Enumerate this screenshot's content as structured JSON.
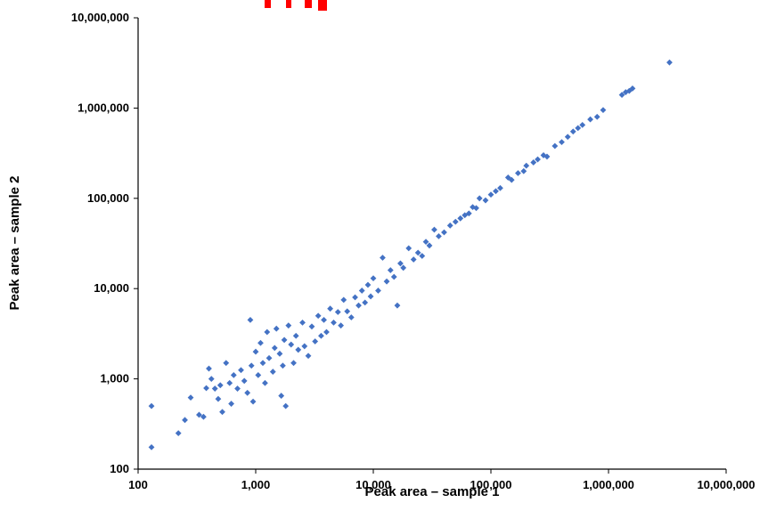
{
  "chart_data": {
    "type": "scatter",
    "title": "",
    "xlabel": "Peak area – sample 1",
    "ylabel": "Peak area – sample 2",
    "xscale": "log",
    "yscale": "log",
    "xlim": [
      100,
      10000000
    ],
    "ylim": [
      100,
      10000000
    ],
    "x_ticks": [
      "100",
      "1,000",
      "10,000",
      "100,000",
      "1,000,000",
      "10,000,000"
    ],
    "y_ticks": [
      "100",
      "1,000",
      "10,000",
      "100,000",
      "1,000,000",
      "10,000,000"
    ],
    "grid": false,
    "legend": "none",
    "marker_color": "#4472C4",
    "marker": "diamond",
    "title_fragment_color": "#FF0000",
    "series": [
      {
        "values": [
          [
            130,
            500
          ],
          [
            130,
            175
          ],
          [
            220,
            250
          ],
          [
            250,
            350
          ],
          [
            280,
            620
          ],
          [
            330,
            400
          ],
          [
            360,
            380
          ],
          [
            380,
            790
          ],
          [
            400,
            1300
          ],
          [
            420,
            1000
          ],
          [
            450,
            780
          ],
          [
            480,
            600
          ],
          [
            500,
            850
          ],
          [
            520,
            430
          ],
          [
            560,
            1500
          ],
          [
            600,
            900
          ],
          [
            620,
            530
          ],
          [
            650,
            1100
          ],
          [
            700,
            780
          ],
          [
            750,
            1250
          ],
          [
            800,
            950
          ],
          [
            850,
            700
          ],
          [
            900,
            4500
          ],
          [
            920,
            1400
          ],
          [
            950,
            560
          ],
          [
            1000,
            2000
          ],
          [
            1050,
            1100
          ],
          [
            1100,
            2500
          ],
          [
            1150,
            1500
          ],
          [
            1200,
            900
          ],
          [
            1250,
            3300
          ],
          [
            1300,
            1700
          ],
          [
            1400,
            1200
          ],
          [
            1450,
            2200
          ],
          [
            1500,
            3600
          ],
          [
            1600,
            1900
          ],
          [
            1650,
            650
          ],
          [
            1700,
            1400
          ],
          [
            1750,
            2700
          ],
          [
            1800,
            500
          ],
          [
            1900,
            3900
          ],
          [
            2000,
            2400
          ],
          [
            2100,
            1500
          ],
          [
            2200,
            3000
          ],
          [
            2300,
            2100
          ],
          [
            2500,
            4200
          ],
          [
            2600,
            2300
          ],
          [
            2800,
            1800
          ],
          [
            3000,
            3800
          ],
          [
            3200,
            2600
          ],
          [
            3400,
            5000
          ],
          [
            3600,
            3000
          ],
          [
            3800,
            4500
          ],
          [
            4000,
            3300
          ],
          [
            4300,
            6000
          ],
          [
            4600,
            4200
          ],
          [
            5000,
            5500
          ],
          [
            5300,
            3900
          ],
          [
            5600,
            7500
          ],
          [
            6000,
            5600
          ],
          [
            6500,
            4800
          ],
          [
            7000,
            8000
          ],
          [
            7500,
            6500
          ],
          [
            8000,
            9500
          ],
          [
            8500,
            7000
          ],
          [
            9000,
            11000
          ],
          [
            9500,
            8200
          ],
          [
            10000,
            13000
          ],
          [
            11000,
            9500
          ],
          [
            12000,
            22000
          ],
          [
            13000,
            12000
          ],
          [
            14000,
            16000
          ],
          [
            15000,
            13500
          ],
          [
            16000,
            6500
          ],
          [
            17000,
            19000
          ],
          [
            18000,
            17000
          ],
          [
            20000,
            28000
          ],
          [
            22000,
            21000
          ],
          [
            24000,
            25000
          ],
          [
            26000,
            23000
          ],
          [
            28000,
            33000
          ],
          [
            30000,
            30000
          ],
          [
            33000,
            45000
          ],
          [
            36000,
            38000
          ],
          [
            40000,
            42000
          ],
          [
            45000,
            50000
          ],
          [
            50000,
            55000
          ],
          [
            55000,
            60000
          ],
          [
            60000,
            65000
          ],
          [
            65000,
            68000
          ],
          [
            70000,
            80000
          ],
          [
            75000,
            78000
          ],
          [
            80000,
            100000
          ],
          [
            90000,
            95000
          ],
          [
            100000,
            110000
          ],
          [
            110000,
            120000
          ],
          [
            120000,
            130000
          ],
          [
            140000,
            170000
          ],
          [
            150000,
            160000
          ],
          [
            170000,
            190000
          ],
          [
            190000,
            200000
          ],
          [
            200000,
            230000
          ],
          [
            230000,
            250000
          ],
          [
            250000,
            270000
          ],
          [
            280000,
            300000
          ],
          [
            300000,
            290000
          ],
          [
            350000,
            380000
          ],
          [
            400000,
            420000
          ],
          [
            450000,
            480000
          ],
          [
            500000,
            550000
          ],
          [
            550000,
            600000
          ],
          [
            600000,
            650000
          ],
          [
            700000,
            750000
          ],
          [
            800000,
            800000
          ],
          [
            900000,
            950000
          ],
          [
            1300000,
            1400000
          ],
          [
            1400000,
            1500000
          ],
          [
            1500000,
            1550000
          ],
          [
            1600000,
            1650000
          ],
          [
            3300000,
            3200000
          ]
        ]
      }
    ]
  }
}
